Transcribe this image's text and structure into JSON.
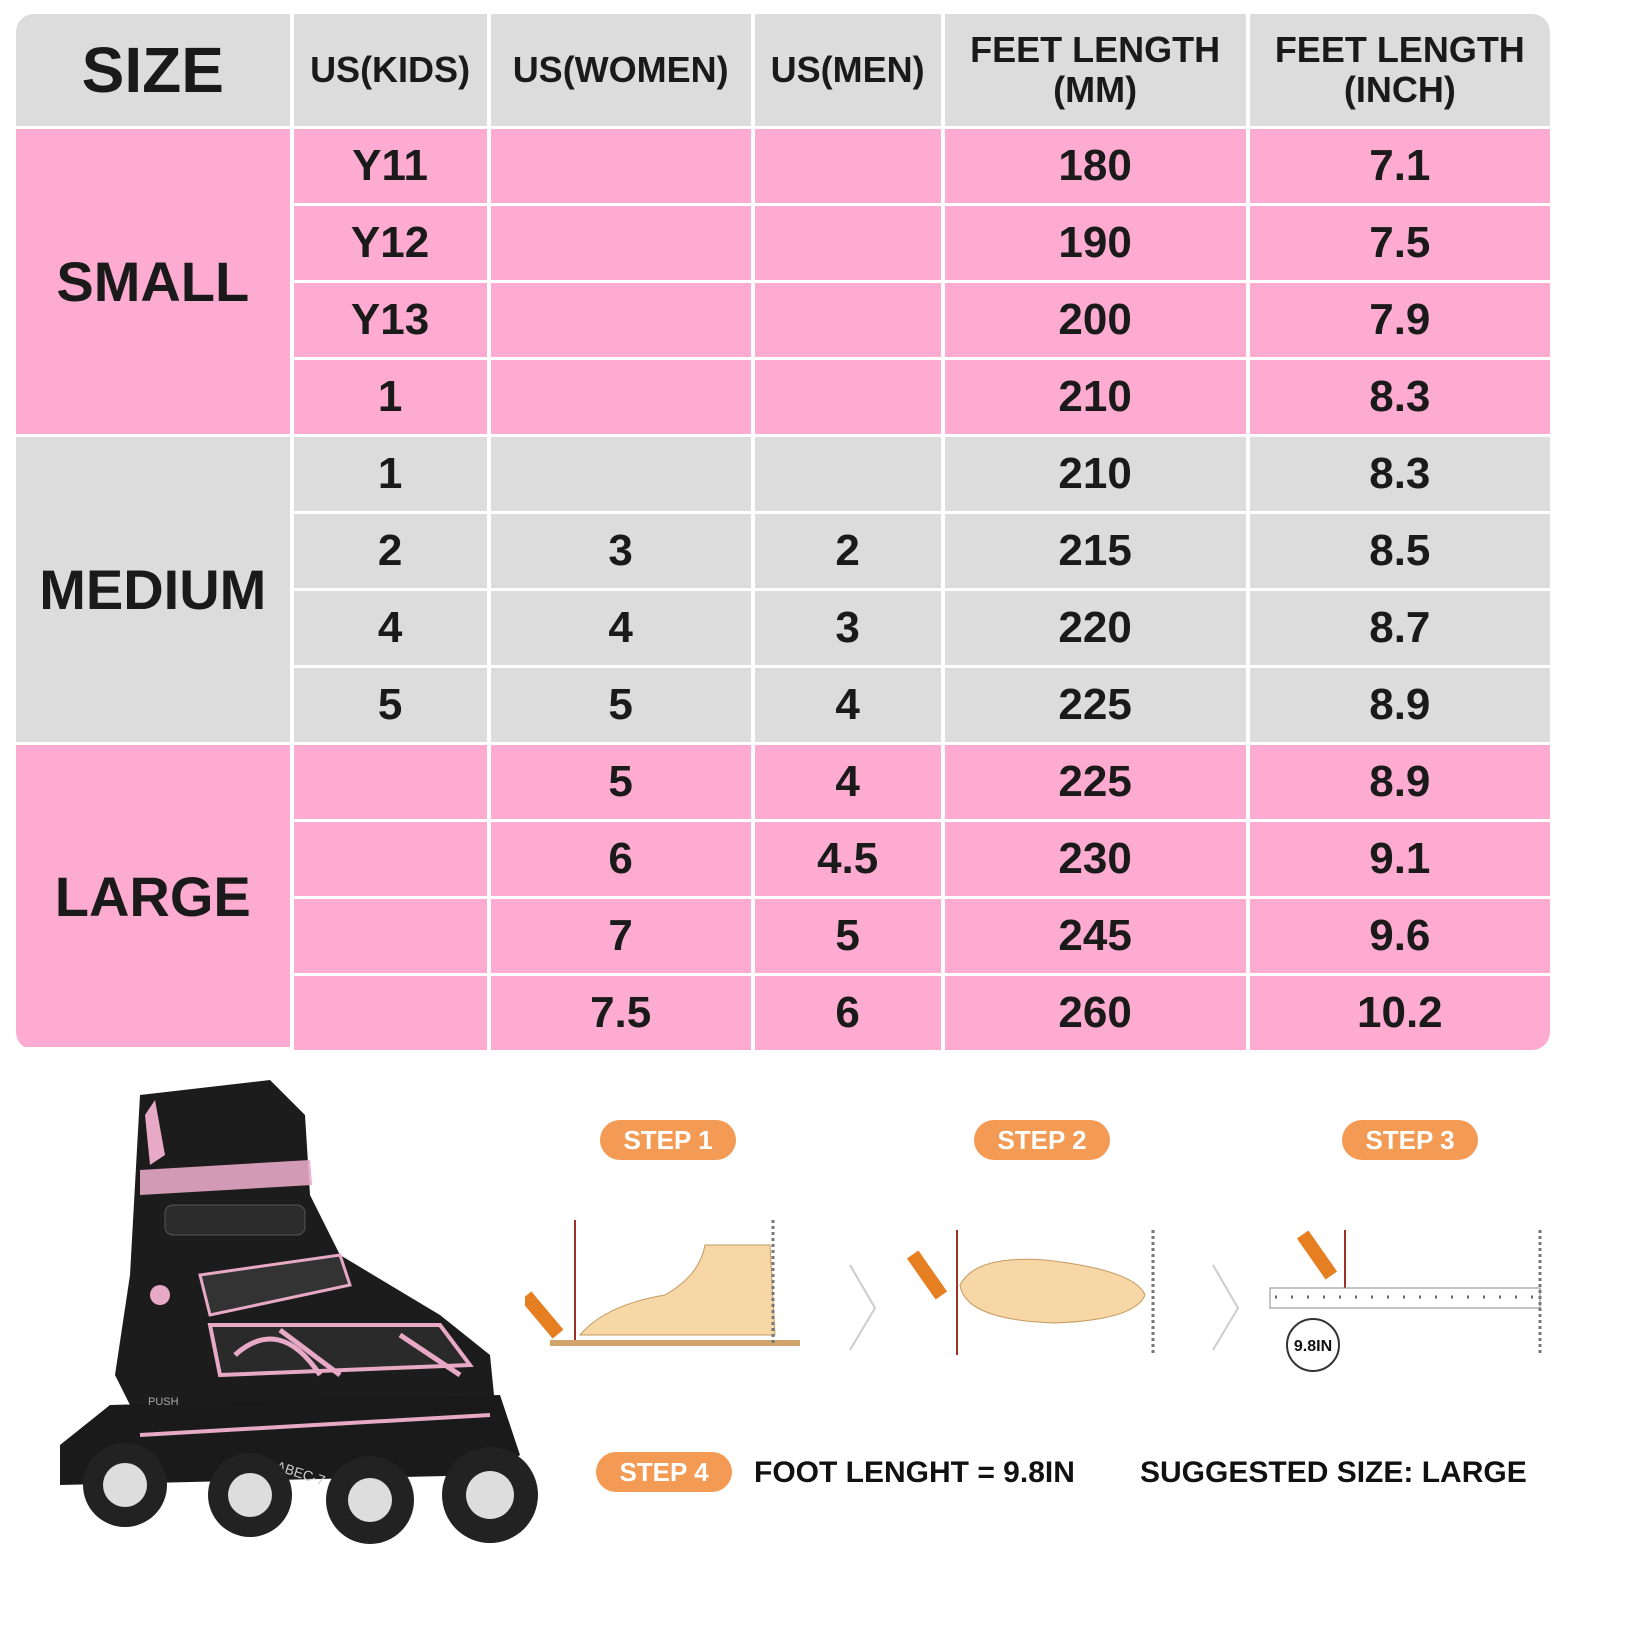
{
  "table": {
    "headers": [
      "SIZE",
      "US(KIDS)",
      "US(WOMEN)",
      "US(MEN)",
      "FEET LENGTH\n(MM)",
      "FEET LENGTH\n(INCH)"
    ],
    "groups": [
      {
        "name": "SMALL",
        "color": "#fdabd0",
        "rows": [
          [
            "Y11",
            "",
            "",
            "180",
            "7.1"
          ],
          [
            "Y12",
            "",
            "",
            "190",
            "7.5"
          ],
          [
            "Y13",
            "",
            "",
            "200",
            "7.9"
          ],
          [
            "1",
            "",
            "",
            "210",
            "8.3"
          ]
        ]
      },
      {
        "name": "MEDIUM",
        "color": "#dcdcdc",
        "rows": [
          [
            "1",
            "",
            "",
            "210",
            "8.3"
          ],
          [
            "2",
            "3",
            "2",
            "215",
            "8.5"
          ],
          [
            "4",
            "4",
            "3",
            "220",
            "8.7"
          ],
          [
            "5",
            "5",
            "4",
            "225",
            "8.9"
          ]
        ]
      },
      {
        "name": "LARGE",
        "color": "#fdabd0",
        "rows": [
          [
            "",
            "5",
            "4",
            "225",
            "8.9"
          ],
          [
            "",
            "6",
            "4.5",
            "230",
            "9.1"
          ],
          [
            "",
            "7",
            "5",
            "245",
            "9.6"
          ],
          [
            "",
            "7.5",
            "6",
            "260",
            "10.2"
          ]
        ]
      }
    ]
  },
  "steps": {
    "step1": "STEP 1",
    "step2": "STEP 2",
    "step3": "STEP 3",
    "step4": "STEP 4",
    "ruler_reading": "9.8IN",
    "foot_length": "FOOT LENGHT = 9.8IN",
    "suggested": "SUGGESTED SIZE: LARGE"
  },
  "product": {
    "wheel_label": "ABEC-7",
    "push_label": "PUSH"
  },
  "colors": {
    "pink": "#fdabd0",
    "gray": "#dcdcdc",
    "step_orange": "#f39a55"
  }
}
